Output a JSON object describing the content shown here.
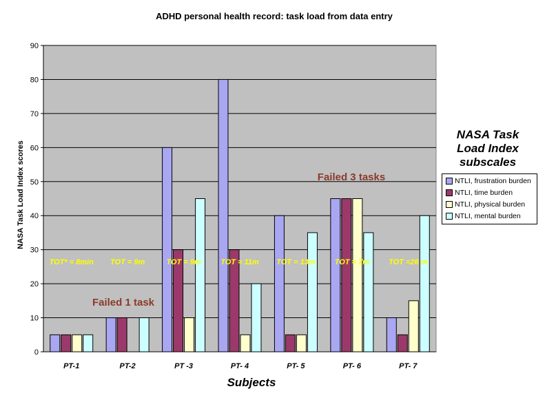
{
  "chart_data": {
    "type": "bar",
    "title": "ADHD personal health record: task load from data entry",
    "xlabel": "Subjects",
    "ylabel": "NASA Task Load Index scores",
    "ylim": [
      0,
      90
    ],
    "yticks": [
      0,
      10,
      20,
      30,
      40,
      50,
      60,
      70,
      80,
      90
    ],
    "grid": true,
    "categories": [
      "PT-1",
      "PT-2",
      "PT -3",
      "PT- 4",
      "PT- 5",
      "PT- 6",
      "PT- 7"
    ],
    "series": [
      {
        "name": "NTLI, frustration burden",
        "color": "#a9a6f2",
        "values": [
          5,
          10,
          60,
          80,
          40,
          45,
          10
        ]
      },
      {
        "name": "NTLI, time burden",
        "color": "#9b3a6a",
        "values": [
          5,
          10,
          30,
          30,
          5,
          45,
          5
        ]
      },
      {
        "name": "NTLI, physical burden",
        "color": "#ffffcc",
        "values": [
          5,
          0,
          10,
          5,
          5,
          45,
          15
        ]
      },
      {
        "name": "NTLI, mental  burden",
        "color": "#ccffff",
        "values": [
          5,
          10,
          45,
          20,
          35,
          35,
          40
        ]
      }
    ],
    "legend_title": [
      "NASA Task",
      "Load Index",
      "subscales"
    ],
    "legend_position": "right",
    "tot_labels": [
      "TOT* = 8min",
      "TOT = 9m",
      "TOT = 9m",
      "TOT = 11m",
      "TOT = 13m",
      "TOT = 7m",
      "TOT =26 m"
    ],
    "annotations": [
      "Failed 1 task",
      "Failed 3 tasks"
    ]
  },
  "colors": {
    "plot_bg": "#c0c0c0",
    "tot_text": "#ffff00",
    "annotation_text": "#8b3a2a"
  }
}
